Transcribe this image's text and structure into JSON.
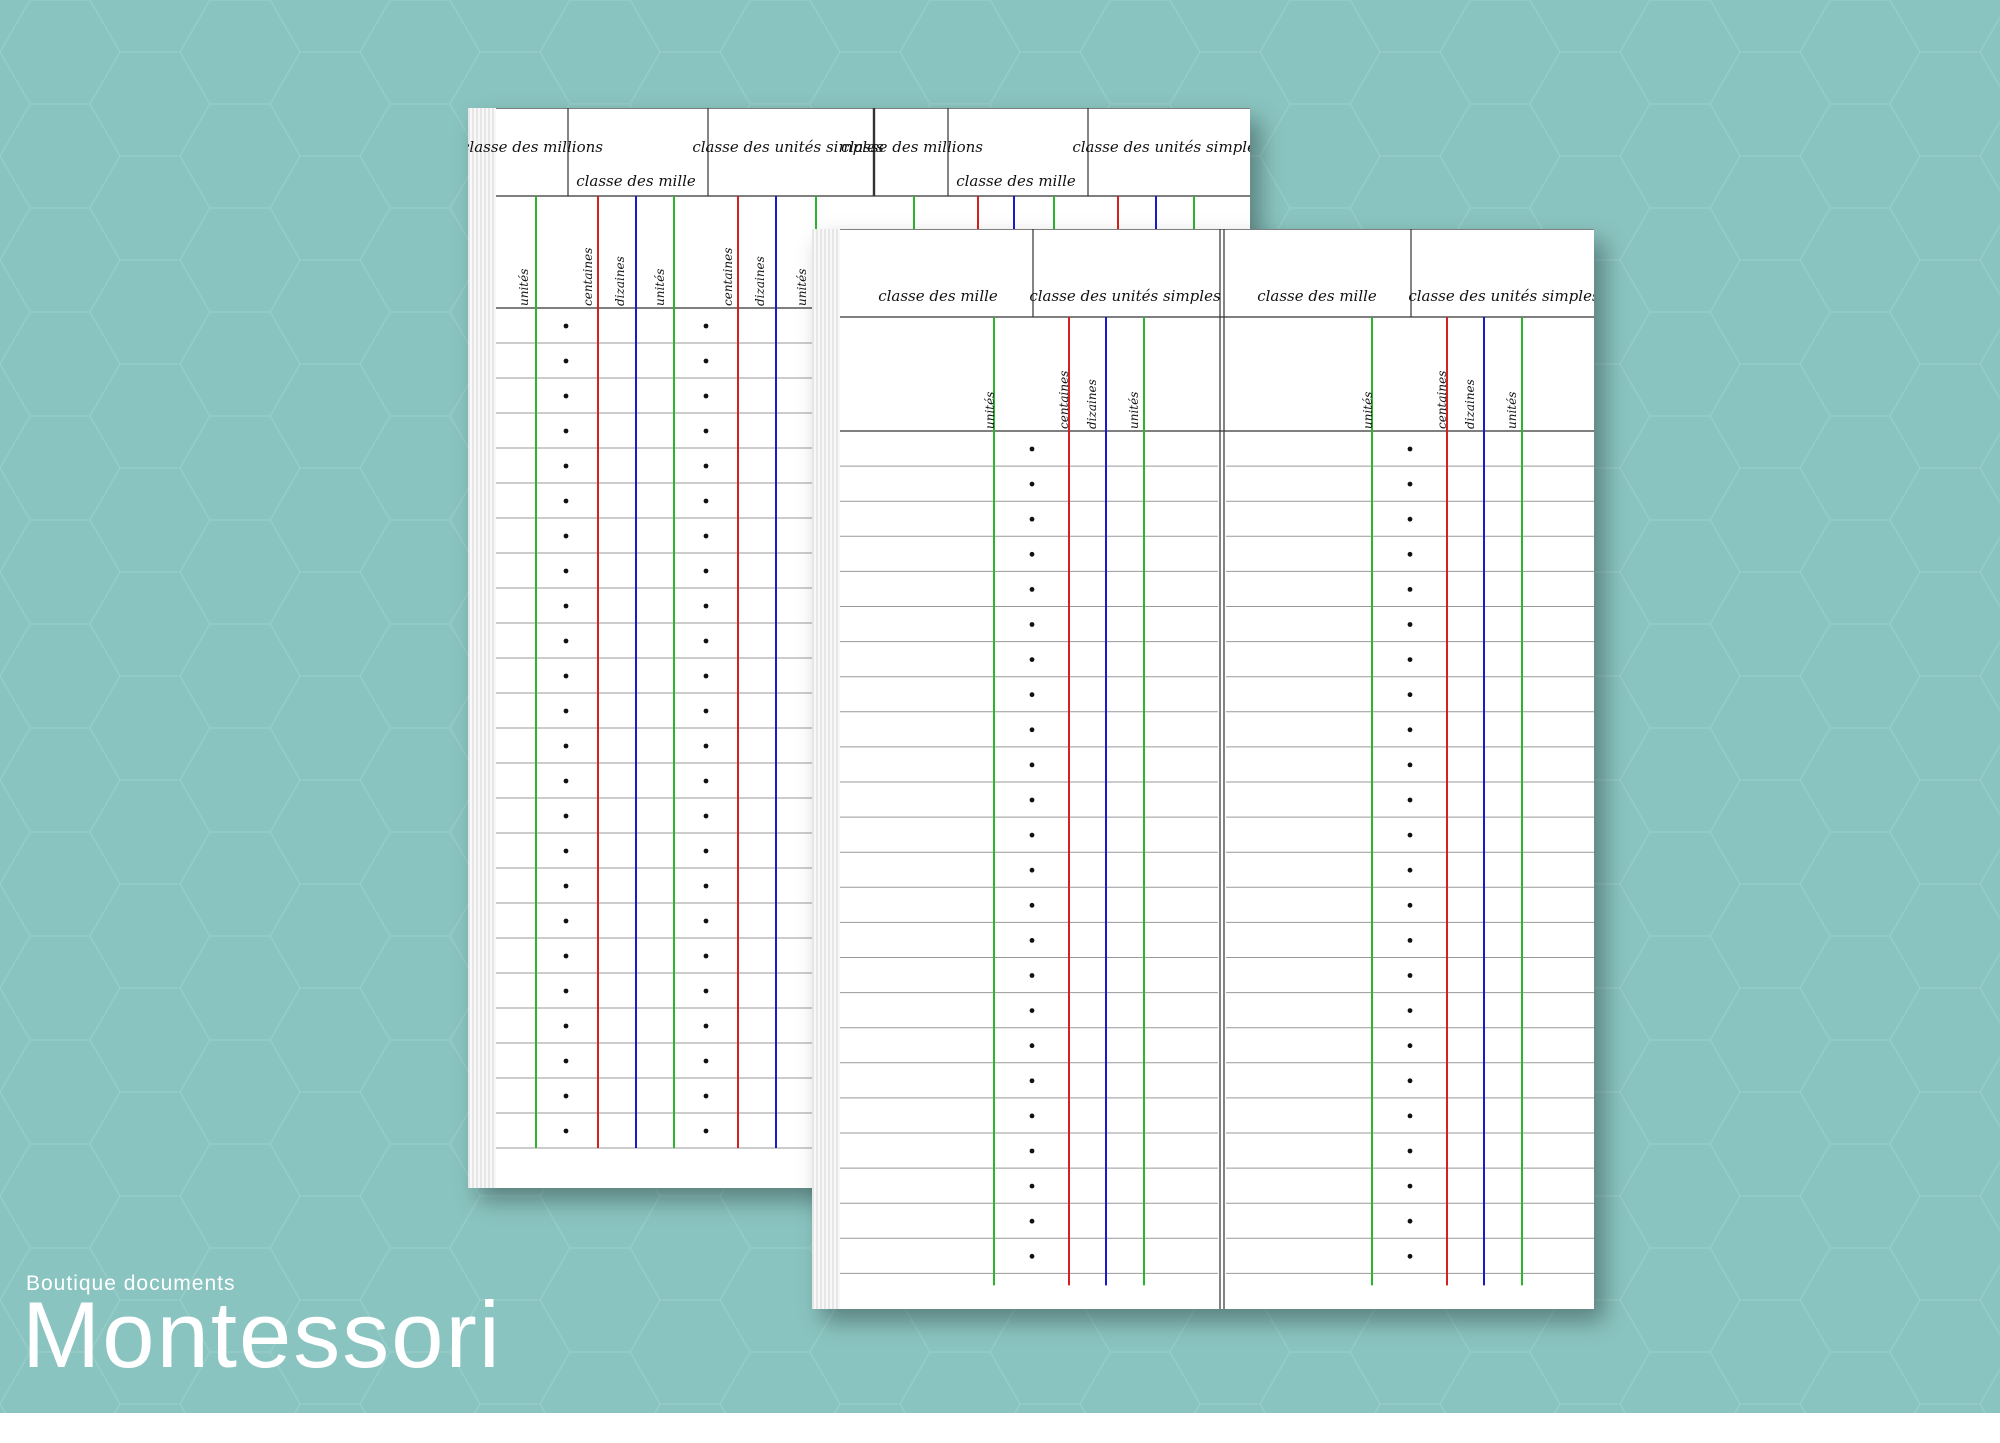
{
  "back_sheet": {
    "groups": [
      {
        "title": "classe des millions"
      },
      {
        "title": "classe des mille"
      },
      {
        "title": "classe des unités simples"
      },
      {
        "title": "classe des millions"
      },
      {
        "title": "classe des mille"
      },
      {
        "title": "classe des unités simples"
      }
    ],
    "columns": [
      "unités",
      "centaines",
      "dizaines",
      "unités",
      "centaines",
      "dizaines",
      "unités"
    ],
    "row_count": 24
  },
  "front_sheet": {
    "groups": [
      {
        "title": "classe des mille"
      },
      {
        "title": "classe des unités simples"
      },
      {
        "title": "classe des mille"
      },
      {
        "title": "classe des unités simples"
      }
    ],
    "columns_left": [
      "unités",
      "centaines",
      "dizaines",
      "unités"
    ],
    "columns_right": [
      "unités",
      "centaines",
      "dizaines",
      "unités"
    ],
    "row_count": 24
  },
  "colors": {
    "background": "#8ac4c0",
    "unit_line": "#2bb52b",
    "ten_line": "#1a1acc",
    "hundred_line": "#d42020"
  },
  "logo": {
    "tagline": "Boutique documents",
    "name": "Montessori"
  }
}
